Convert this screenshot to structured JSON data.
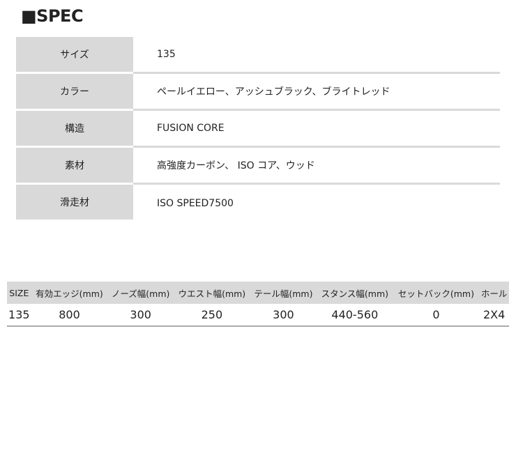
{
  "title": "■SPEC",
  "spec_rows": [
    {
      "label": "サイズ",
      "value": "135"
    },
    {
      "label": "カラー",
      "value": "ペールイエロー、アッシュブラック、ブライトレッド"
    },
    {
      "label": "構造",
      "value": "FUSION CORE"
    },
    {
      "label": "素材",
      "value": "高強度カーボン、 ISO コア、ウッド"
    },
    {
      "label": "滑走材",
      "value": "ISO SPEED7500"
    }
  ],
  "size_table": {
    "headers": [
      "SIZE",
      "有効エッジ(mm)",
      "ノーズ幅(mm)",
      "ウエスト幅(mm)",
      "テール幅(mm)",
      "スタンス幅(mm)",
      "セットバック(mm)",
      "ホール"
    ],
    "rows": [
      [
        "135",
        "800",
        "300",
        "250",
        "300",
        "440-560",
        "0",
        "2X4"
      ]
    ]
  }
}
